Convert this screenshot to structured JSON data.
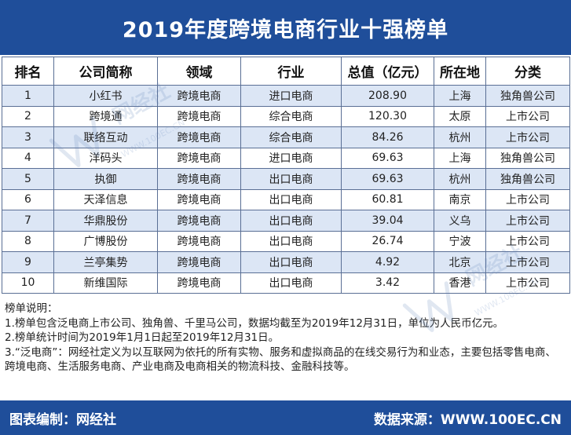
{
  "title": "2019年度跨境电商行业十强榜单",
  "table": {
    "headers": [
      "排名",
      "公司简称",
      "领域",
      "行业",
      "总值（亿元）",
      "所在地",
      "分类"
    ],
    "rows": [
      [
        "1",
        "小红书",
        "跨境电商",
        "进口电商",
        "208.90",
        "上海",
        "独角兽公司"
      ],
      [
        "2",
        "跨境通",
        "跨境电商",
        "综合电商",
        "120.30",
        "太原",
        "上市公司"
      ],
      [
        "3",
        "联络互动",
        "跨境电商",
        "综合电商",
        "84.26",
        "杭州",
        "上市公司"
      ],
      [
        "4",
        "洋码头",
        "跨境电商",
        "进口电商",
        "69.63",
        "上海",
        "独角兽公司"
      ],
      [
        "5",
        "执御",
        "跨境电商",
        "出口电商",
        "69.63",
        "杭州",
        "独角兽公司"
      ],
      [
        "6",
        "天泽信息",
        "跨境电商",
        "出口电商",
        "60.81",
        "南京",
        "上市公司"
      ],
      [
        "7",
        "华鼎股份",
        "跨境电商",
        "出口电商",
        "39.04",
        "义乌",
        "上市公司"
      ],
      [
        "8",
        "广博股份",
        "跨境电商",
        "出口电商",
        "26.74",
        "宁波",
        "上市公司"
      ],
      [
        "9",
        "兰亭集势",
        "跨境电商",
        "出口电商",
        "4.92",
        "北京",
        "上市公司"
      ],
      [
        "10",
        "新维国际",
        "跨境电商",
        "出口电商",
        "3.42",
        "香港",
        "上市公司"
      ]
    ]
  },
  "notes": {
    "heading": "榜单说明：",
    "lines": [
      "1.榜单包含泛电商上市公司、独角兽、千里马公司，数据均截至为2019年12月31日，单位为人民币亿元。",
      "2.榜单统计时间为2019年1月1日起至2019年12月31日。",
      "3.“泛电商”：网经社定义为以互联网为依托的所有实物、服务和虚拟商品的在线交易行为和业态，主要包括零售电商、跨境电商、生活服务电商、产业电商及电商相关的物流科技、金融科技等。"
    ]
  },
  "footer": {
    "left": "图表编制：网经社",
    "right": "数据来源：WWW.100EC.CN"
  },
  "watermark": {
    "logo_text": "网经社",
    "url_text": "WWW.100EC.CN"
  },
  "colors": {
    "brand_blue": "#1f4e9a",
    "row_stripe": "#dce6f5",
    "grid_line": "#5a6f95"
  }
}
